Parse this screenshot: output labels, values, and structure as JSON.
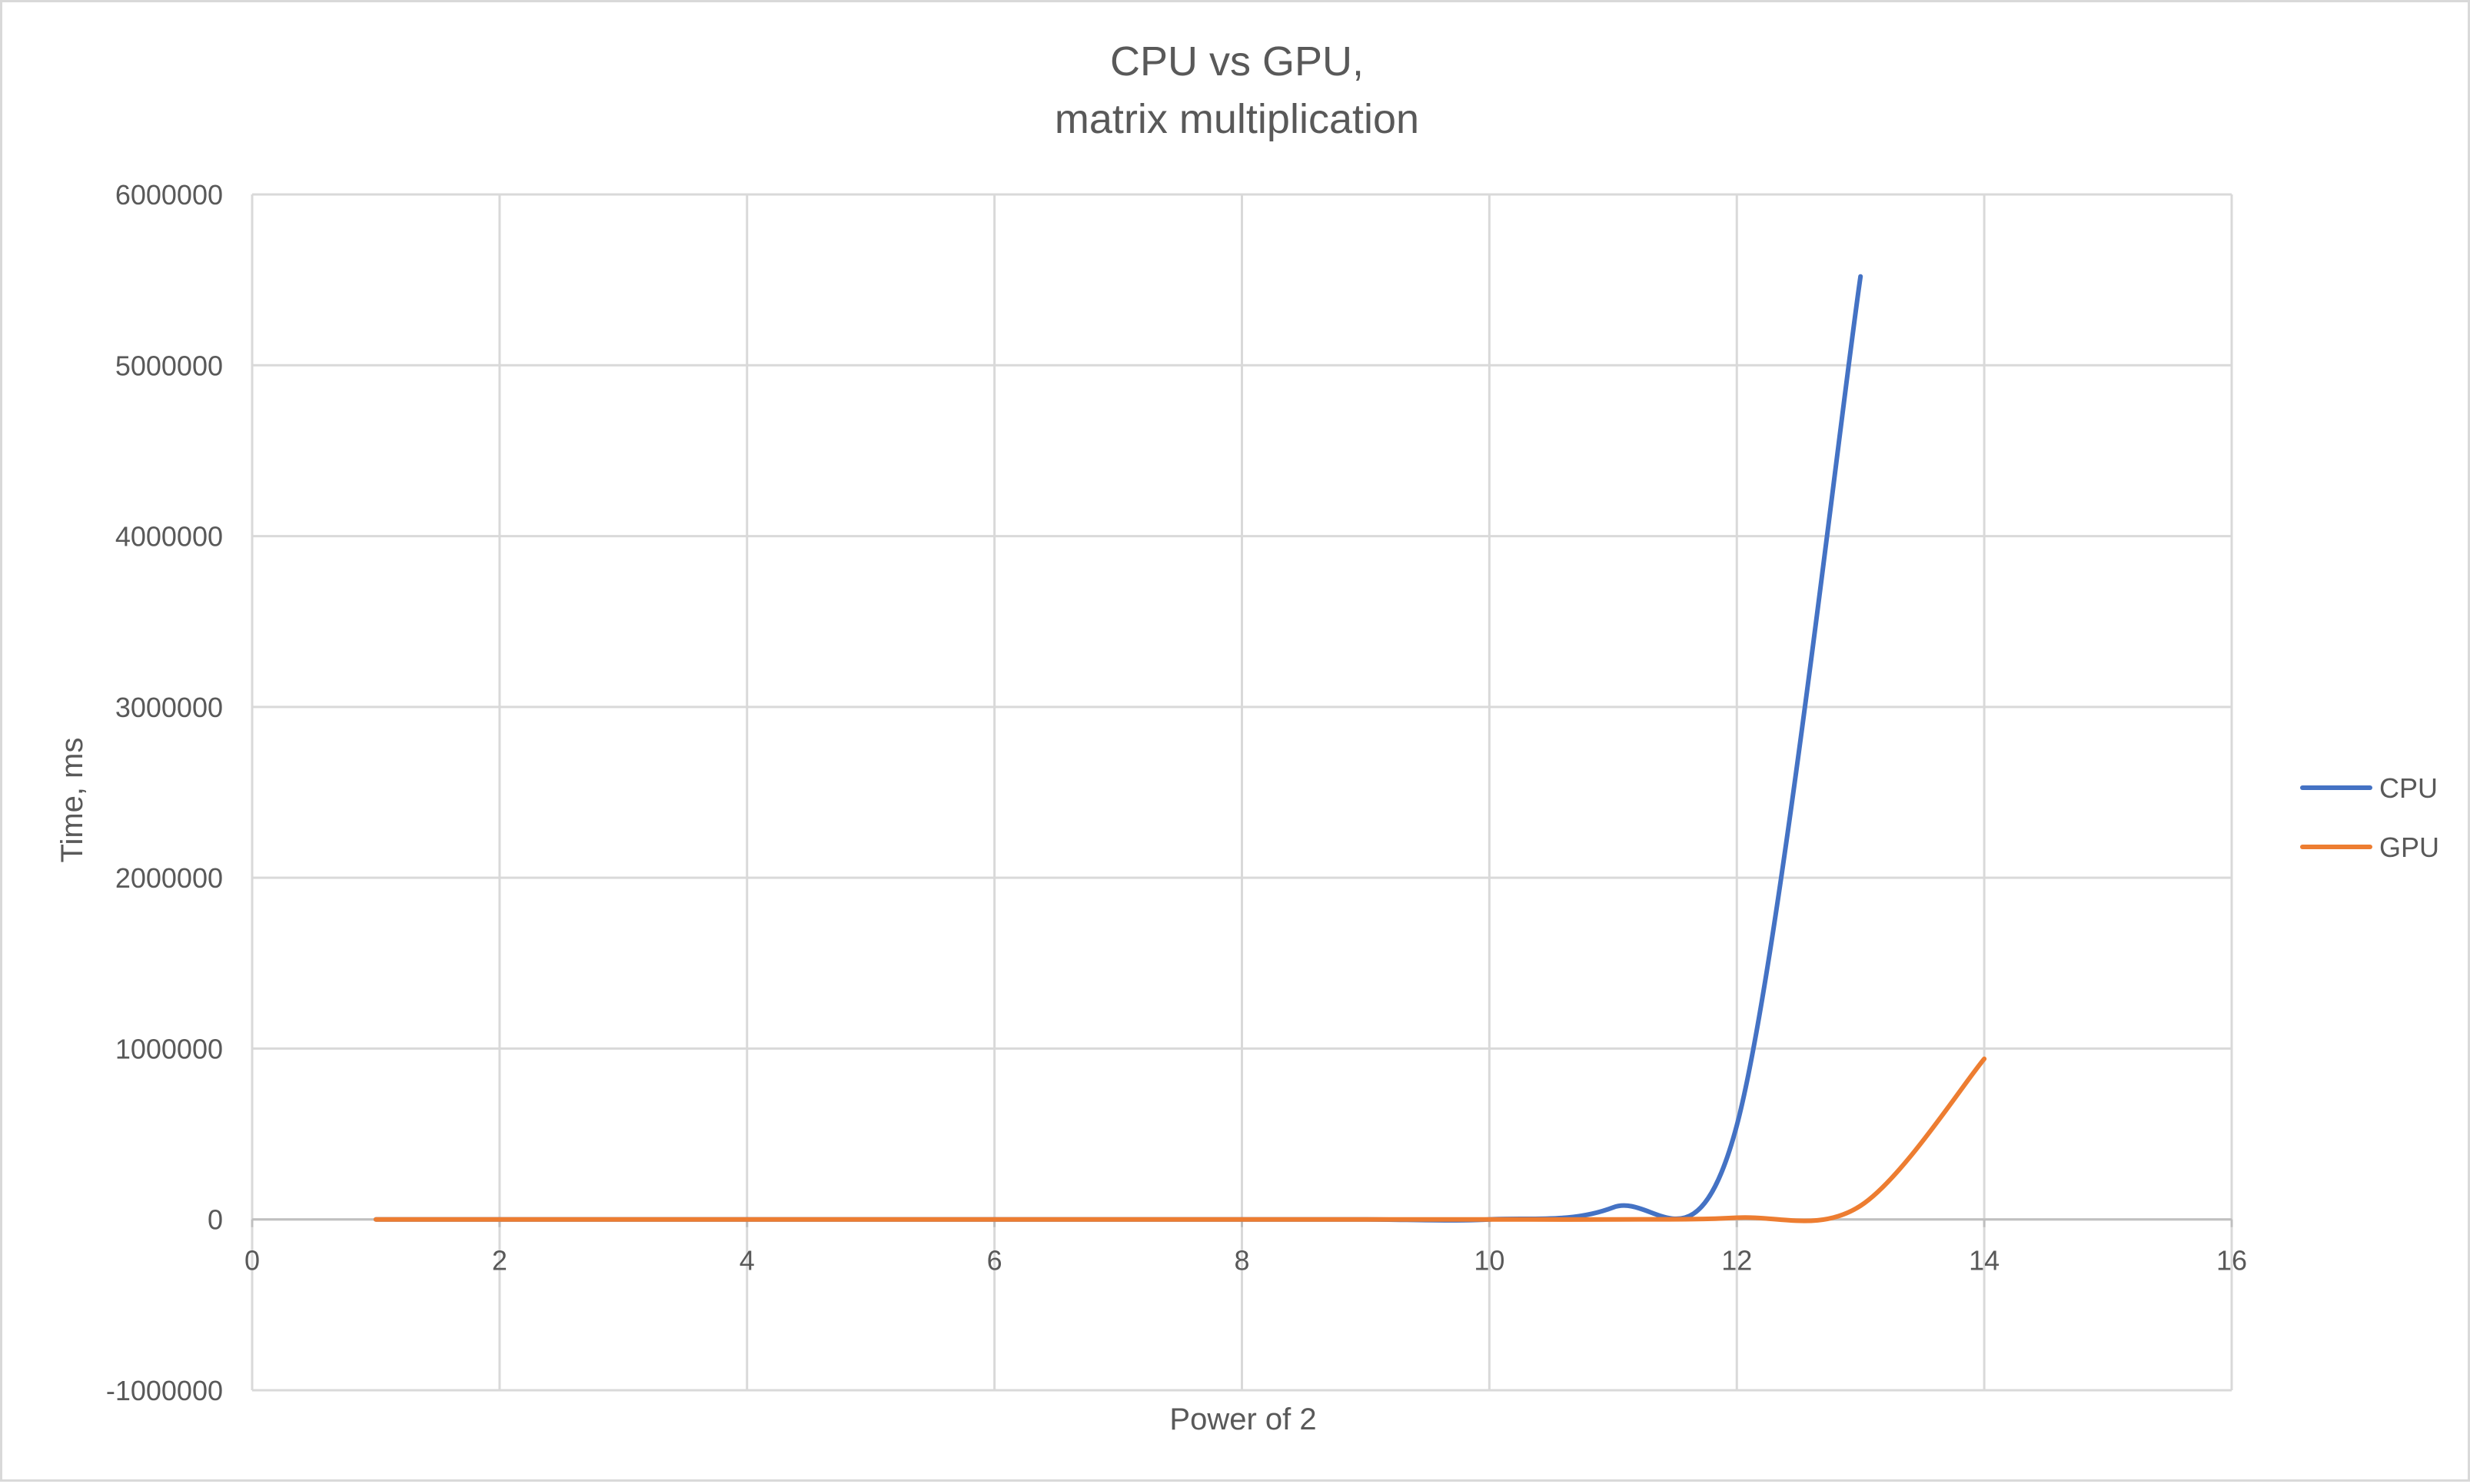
{
  "chart_data": {
    "type": "line",
    "title_lines": [
      "CPU vs GPU,",
      "matrix multiplication"
    ],
    "xlabel": "Power of 2",
    "ylabel": "Time, ms",
    "xlim": [
      0,
      16
    ],
    "ylim": [
      -1000000,
      6000000
    ],
    "x_ticks": [
      0,
      2,
      4,
      6,
      8,
      10,
      12,
      14,
      16
    ],
    "x_tick_labels": [
      "0",
      "2",
      "4",
      "6",
      "8",
      "10",
      "12",
      "14",
      "16"
    ],
    "y_ticks": [
      -1000000,
      0,
      1000000,
      2000000,
      3000000,
      4000000,
      5000000,
      6000000
    ],
    "y_tick_labels": [
      "-1000000",
      "0",
      "1000000",
      "2000000",
      "3000000",
      "4000000",
      "5000000",
      "6000000"
    ],
    "grid": true,
    "legend_position": "right",
    "smooth": true,
    "series": [
      {
        "name": "CPU",
        "color": "#4472C4",
        "x": [
          1,
          2,
          3,
          4,
          5,
          6,
          7,
          8,
          9,
          10,
          11,
          12,
          13
        ],
        "y": [
          0,
          0,
          0,
          0,
          0,
          0,
          0,
          0,
          0,
          0,
          70000,
          550000,
          5520000
        ]
      },
      {
        "name": "GPU",
        "color": "#ED7D31",
        "x": [
          1,
          2,
          3,
          4,
          5,
          6,
          7,
          8,
          9,
          10,
          11,
          12,
          13,
          14
        ],
        "y": [
          0,
          0,
          0,
          0,
          0,
          0,
          0,
          0,
          0,
          0,
          0,
          10000,
          80000,
          940000
        ]
      }
    ]
  }
}
